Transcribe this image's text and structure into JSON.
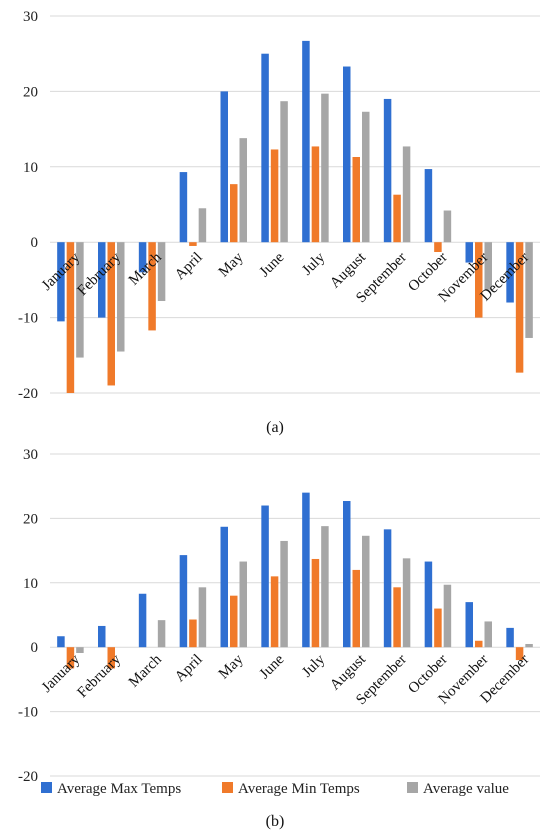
{
  "colors": {
    "max": "#2f6fd1",
    "min": "#f07a2a",
    "avg": "#a6a6a6",
    "grid": "#d9d9d9"
  },
  "chart_data": [
    {
      "type": "bar",
      "caption": "(a)",
      "categories": [
        "January",
        "February",
        "March",
        "April",
        "May",
        "June",
        "July",
        "August",
        "September",
        "October",
        "November",
        "December"
      ],
      "ylim": [
        -20,
        30
      ],
      "yticks": [
        -20,
        -10,
        0,
        10,
        20,
        30
      ],
      "grid": true,
      "legend": "none",
      "series": [
        {
          "name": "Average Max Temps",
          "values": [
            -10.5,
            -10,
            -4,
            9.3,
            20,
            25,
            26.7,
            23.3,
            19,
            9.7,
            -2.7,
            -8
          ]
        },
        {
          "name": "Average Min Temps",
          "values": [
            -20,
            -19,
            -11.7,
            -0.5,
            7.7,
            12.3,
            12.7,
            11.3,
            6.3,
            -1.3,
            -10,
            -17.3
          ]
        },
        {
          "name": "Average value",
          "values": [
            -15.3,
            -14.5,
            -7.8,
            4.5,
            13.8,
            18.7,
            19.7,
            17.3,
            12.7,
            4.2,
            -6.3,
            -12.7
          ]
        }
      ]
    },
    {
      "type": "bar",
      "caption": "(b)",
      "categories": [
        "January",
        "February",
        "March",
        "April",
        "May",
        "June",
        "July",
        "August",
        "September",
        "October",
        "November",
        "December"
      ],
      "ylim": [
        -20,
        30
      ],
      "yticks": [
        -20,
        -10,
        0,
        10,
        20,
        30
      ],
      "grid": true,
      "legend": "bottom",
      "series": [
        {
          "name": "Average Max Temps",
          "values": [
            1.7,
            3.3,
            8.3,
            14.3,
            18.7,
            22,
            24,
            22.7,
            18.3,
            13.3,
            7,
            3
          ]
        },
        {
          "name": "Average Min Temps",
          "values": [
            -3.3,
            -3.3,
            0,
            4.3,
            8,
            11,
            13.7,
            12,
            9.3,
            6,
            1,
            -2
          ]
        },
        {
          "name": "Average value",
          "values": [
            -0.9,
            0,
            4.2,
            9.3,
            13.3,
            16.5,
            18.8,
            17.3,
            13.8,
            9.7,
            4,
            0.5
          ]
        }
      ]
    }
  ]
}
